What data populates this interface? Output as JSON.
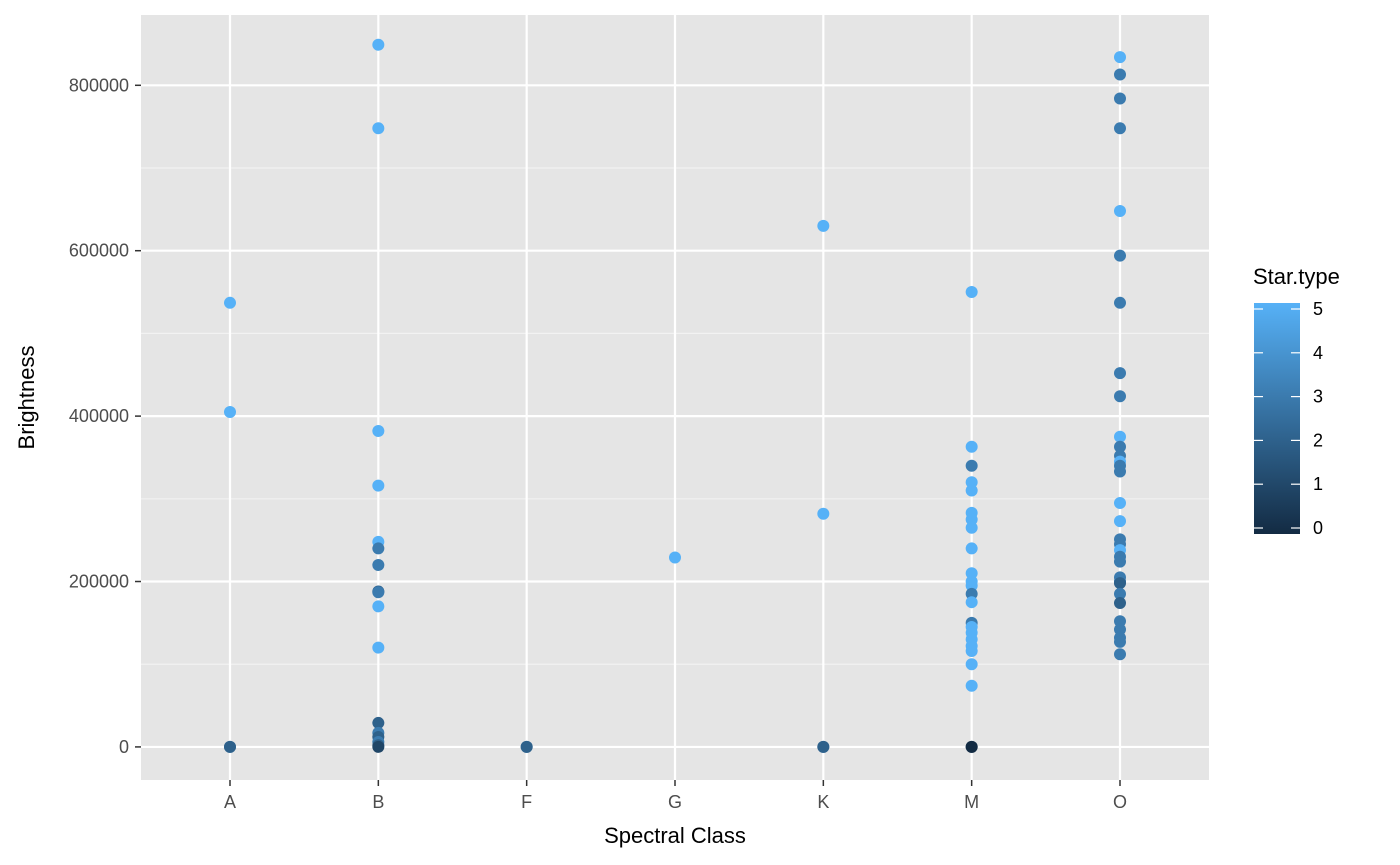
{
  "chart_data": {
    "type": "scatter",
    "xlabel": "Spectral Class",
    "ylabel": "Brightness",
    "categories": [
      "A",
      "B",
      "F",
      "G",
      "K",
      "M",
      "O"
    ],
    "ylim": [
      -40000,
      885000
    ],
    "yticks": [
      0,
      200000,
      400000,
      600000,
      800000
    ],
    "ytick_labels": [
      "0",
      "200000",
      "400000",
      "600000",
      "800000"
    ],
    "grid": true,
    "legend": {
      "title": "Star.type",
      "position": "right",
      "type": "colorbar",
      "range": [
        0,
        5
      ],
      "ticks": [
        0,
        1,
        2,
        3,
        4,
        5
      ],
      "tick_labels": [
        "0",
        "1",
        "2",
        "3",
        "4",
        "5"
      ],
      "color_low": "#132B43",
      "color_high": "#56B1F7"
    },
    "colors": {
      "panel_background": "#E5E5E5",
      "grid_major": "#FFFFFF",
      "grid_minor": "#F2F2F2"
    },
    "points": [
      {
        "x": "A",
        "y": 537000,
        "type": 5
      },
      {
        "x": "A",
        "y": 405000,
        "type": 5
      },
      {
        "x": "A",
        "y": 0,
        "type": 3
      },
      {
        "x": "A",
        "y": 0,
        "type": 2
      },
      {
        "x": "B",
        "y": 849000,
        "type": 5
      },
      {
        "x": "B",
        "y": 748000,
        "type": 5
      },
      {
        "x": "B",
        "y": 382000,
        "type": 5
      },
      {
        "x": "B",
        "y": 316000,
        "type": 5
      },
      {
        "x": "B",
        "y": 248000,
        "type": 5
      },
      {
        "x": "B",
        "y": 240000,
        "type": 3
      },
      {
        "x": "B",
        "y": 220000,
        "type": 3
      },
      {
        "x": "B",
        "y": 188000,
        "type": 2
      },
      {
        "x": "B",
        "y": 187000,
        "type": 3
      },
      {
        "x": "B",
        "y": 170000,
        "type": 5
      },
      {
        "x": "B",
        "y": 120000,
        "type": 5
      },
      {
        "x": "B",
        "y": 29000,
        "type": 2
      },
      {
        "x": "B",
        "y": 17000,
        "type": 3
      },
      {
        "x": "B",
        "y": 12000,
        "type": 2
      },
      {
        "x": "B",
        "y": 6000,
        "type": 3
      },
      {
        "x": "B",
        "y": 2000,
        "type": 2
      },
      {
        "x": "B",
        "y": 0,
        "type": 1
      },
      {
        "x": "F",
        "y": 0,
        "type": 3
      },
      {
        "x": "F",
        "y": 0,
        "type": 2
      },
      {
        "x": "G",
        "y": 229000,
        "type": 5
      },
      {
        "x": "K",
        "y": 630000,
        "type": 5
      },
      {
        "x": "K",
        "y": 282000,
        "type": 5
      },
      {
        "x": "K",
        "y": 0,
        "type": 3
      },
      {
        "x": "K",
        "y": 0,
        "type": 2
      },
      {
        "x": "M",
        "y": 550000,
        "type": 5
      },
      {
        "x": "M",
        "y": 363000,
        "type": 5
      },
      {
        "x": "M",
        "y": 340000,
        "type": 3
      },
      {
        "x": "M",
        "y": 320000,
        "type": 5
      },
      {
        "x": "M",
        "y": 310000,
        "type": 5
      },
      {
        "x": "M",
        "y": 283000,
        "type": 5
      },
      {
        "x": "M",
        "y": 275000,
        "type": 5
      },
      {
        "x": "M",
        "y": 265000,
        "type": 5
      },
      {
        "x": "M",
        "y": 240000,
        "type": 5
      },
      {
        "x": "M",
        "y": 210000,
        "type": 5
      },
      {
        "x": "M",
        "y": 200000,
        "type": 5
      },
      {
        "x": "M",
        "y": 195000,
        "type": 5
      },
      {
        "x": "M",
        "y": 185000,
        "type": 3
      },
      {
        "x": "M",
        "y": 175000,
        "type": 5
      },
      {
        "x": "M",
        "y": 150000,
        "type": 3
      },
      {
        "x": "M",
        "y": 145000,
        "type": 5
      },
      {
        "x": "M",
        "y": 138000,
        "type": 5
      },
      {
        "x": "M",
        "y": 130000,
        "type": 5
      },
      {
        "x": "M",
        "y": 122000,
        "type": 5
      },
      {
        "x": "M",
        "y": 116000,
        "type": 5
      },
      {
        "x": "M",
        "y": 100000,
        "type": 5
      },
      {
        "x": "M",
        "y": 74000,
        "type": 5
      },
      {
        "x": "M",
        "y": 0,
        "type": 1
      },
      {
        "x": "M",
        "y": 0,
        "type": 0
      },
      {
        "x": "O",
        "y": 834000,
        "type": 5
      },
      {
        "x": "O",
        "y": 813000,
        "type": 3
      },
      {
        "x": "O",
        "y": 784000,
        "type": 3
      },
      {
        "x": "O",
        "y": 748000,
        "type": 3
      },
      {
        "x": "O",
        "y": 648000,
        "type": 5
      },
      {
        "x": "O",
        "y": 594000,
        "type": 3
      },
      {
        "x": "O",
        "y": 537000,
        "type": 3
      },
      {
        "x": "O",
        "y": 452000,
        "type": 3
      },
      {
        "x": "O",
        "y": 424000,
        "type": 3
      },
      {
        "x": "O",
        "y": 375000,
        "type": 5
      },
      {
        "x": "O",
        "y": 363000,
        "type": 3
      },
      {
        "x": "O",
        "y": 352000,
        "type": 3
      },
      {
        "x": "O",
        "y": 345000,
        "type": 5
      },
      {
        "x": "O",
        "y": 340000,
        "type": 3
      },
      {
        "x": "O",
        "y": 333000,
        "type": 3
      },
      {
        "x": "O",
        "y": 295000,
        "type": 5
      },
      {
        "x": "O",
        "y": 273000,
        "type": 5
      },
      {
        "x": "O",
        "y": 251000,
        "type": 3
      },
      {
        "x": "O",
        "y": 245000,
        "type": 3
      },
      {
        "x": "O",
        "y": 238000,
        "type": 5
      },
      {
        "x": "O",
        "y": 230000,
        "type": 3
      },
      {
        "x": "O",
        "y": 224000,
        "type": 3
      },
      {
        "x": "O",
        "y": 205000,
        "type": 3
      },
      {
        "x": "O",
        "y": 200000,
        "type": 3
      },
      {
        "x": "O",
        "y": 198000,
        "type": 2
      },
      {
        "x": "O",
        "y": 185000,
        "type": 3
      },
      {
        "x": "O",
        "y": 174000,
        "type": 2
      },
      {
        "x": "O",
        "y": 152000,
        "type": 3
      },
      {
        "x": "O",
        "y": 142000,
        "type": 3
      },
      {
        "x": "O",
        "y": 132000,
        "type": 3
      },
      {
        "x": "O",
        "y": 127000,
        "type": 3
      },
      {
        "x": "O",
        "y": 112000,
        "type": 3
      }
    ]
  }
}
